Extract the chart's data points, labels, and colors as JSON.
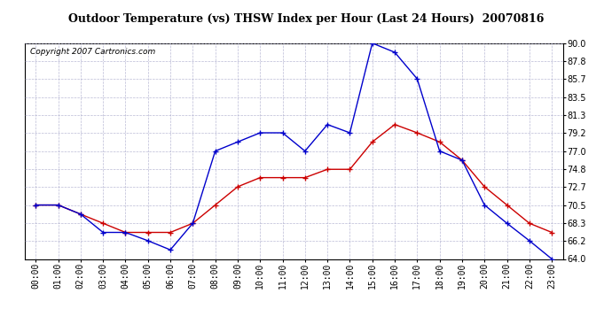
{
  "title": "Outdoor Temperature (vs) THSW Index per Hour (Last 24 Hours)  20070816",
  "copyright": "Copyright 2007 Cartronics.com",
  "hours": [
    "00:00",
    "01:00",
    "02:00",
    "03:00",
    "04:00",
    "05:00",
    "06:00",
    "07:00",
    "08:00",
    "09:00",
    "10:00",
    "11:00",
    "12:00",
    "13:00",
    "14:00",
    "15:00",
    "16:00",
    "17:00",
    "18:00",
    "19:00",
    "20:00",
    "21:00",
    "22:00",
    "23:00"
  ],
  "temp_red": [
    70.5,
    70.5,
    69.4,
    68.3,
    67.2,
    67.2,
    67.2,
    68.3,
    70.5,
    72.7,
    73.8,
    73.8,
    73.8,
    74.8,
    74.8,
    78.1,
    80.2,
    79.2,
    78.1,
    75.9,
    72.7,
    70.5,
    68.3,
    67.2
  ],
  "thsw_blue": [
    70.5,
    70.5,
    69.4,
    67.2,
    67.2,
    66.2,
    65.1,
    68.3,
    77.0,
    78.1,
    79.2,
    79.2,
    77.0,
    80.2,
    79.2,
    90.0,
    88.9,
    85.7,
    77.0,
    75.9,
    70.5,
    68.3,
    66.2,
    64.0
  ],
  "ylim": [
    64.0,
    90.0
  ],
  "yticks": [
    64.0,
    66.2,
    68.3,
    70.5,
    72.7,
    74.8,
    77.0,
    79.2,
    81.3,
    83.5,
    85.7,
    87.8,
    90.0
  ],
  "bg_color": "#ffffff",
  "grid_color": "#aaaacc",
  "red_color": "#cc0000",
  "blue_color": "#0000cc",
  "title_fontsize": 9,
  "copyright_fontsize": 6.5,
  "tick_fontsize": 7
}
